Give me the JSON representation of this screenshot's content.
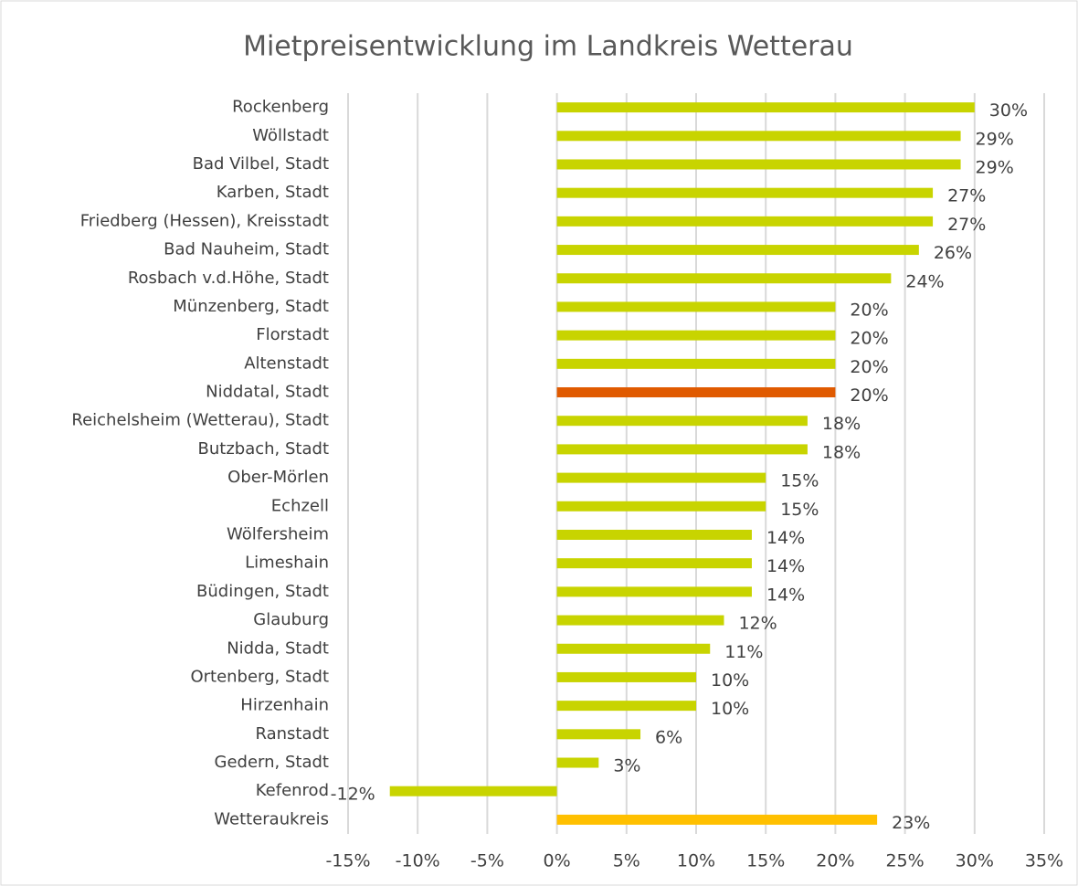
{
  "chart_data": {
    "type": "hbar",
    "title": "Mietpreisentwicklung im Landkreis Wetterau",
    "categories": [
      "Rockenberg",
      "Wöllstadt",
      "Bad Vilbel, Stadt",
      "Karben, Stadt",
      "Friedberg (Hessen), Kreisstadt",
      "Bad Nauheim, Stadt",
      "Rosbach v.d.Höhe, Stadt",
      "Münzenberg, Stadt",
      "Florstadt",
      "Altenstadt",
      "Niddatal, Stadt",
      "Reichelsheim (Wetterau), Stadt",
      "Butzbach, Stadt",
      "Ober-Mörlen",
      "Echzell",
      "Wölfersheim",
      "Limeshain",
      "Büdingen, Stadt",
      "Glauburg",
      "Nidda, Stadt",
      "Ortenberg, Stadt",
      "Hirzenhain",
      "Ranstadt",
      "Gedern, Stadt",
      "Kefenrod",
      "Wetteraukreis"
    ],
    "values": [
      30,
      29,
      29,
      27,
      27,
      26,
      24,
      20,
      20,
      20,
      20,
      18,
      18,
      15,
      15,
      14,
      14,
      14,
      12,
      11,
      10,
      10,
      6,
      3,
      -12,
      23
    ],
    "value_labels": [
      "30%",
      "29%",
      "29%",
      "27%",
      "27%",
      "26%",
      "24%",
      "20%",
      "20%",
      "20%",
      "20%",
      "18%",
      "18%",
      "15%",
      "15%",
      "14%",
      "14%",
      "14%",
      "12%",
      "11%",
      "10%",
      "10%",
      "6%",
      "3%",
      "-12%",
      "23%"
    ],
    "colors": [
      "#c8d400",
      "#c8d400",
      "#c8d400",
      "#c8d400",
      "#c8d400",
      "#c8d400",
      "#c8d400",
      "#c8d400",
      "#c8d400",
      "#c8d400",
      "#e05a00",
      "#c8d400",
      "#c8d400",
      "#c8d400",
      "#c8d400",
      "#c8d400",
      "#c8d400",
      "#c8d400",
      "#c8d400",
      "#c8d400",
      "#c8d400",
      "#c8d400",
      "#c8d400",
      "#c8d400",
      "#c8d400",
      "#ffc000"
    ],
    "xlim": [
      -15,
      35
    ],
    "xticks": [
      {
        "value": -15,
        "label": "-15%"
      },
      {
        "value": -10,
        "label": "-10%"
      },
      {
        "value": -5,
        "label": "-5%"
      },
      {
        "value": 0,
        "label": "0%"
      },
      {
        "value": 5,
        "label": "5%"
      },
      {
        "value": 10,
        "label": "10%"
      },
      {
        "value": 15,
        "label": "15%"
      },
      {
        "value": 20,
        "label": "20%"
      },
      {
        "value": 25,
        "label": "25%"
      },
      {
        "value": 30,
        "label": "30%"
      },
      {
        "value": 35,
        "label": "35%"
      }
    ],
    "grid": true
  }
}
